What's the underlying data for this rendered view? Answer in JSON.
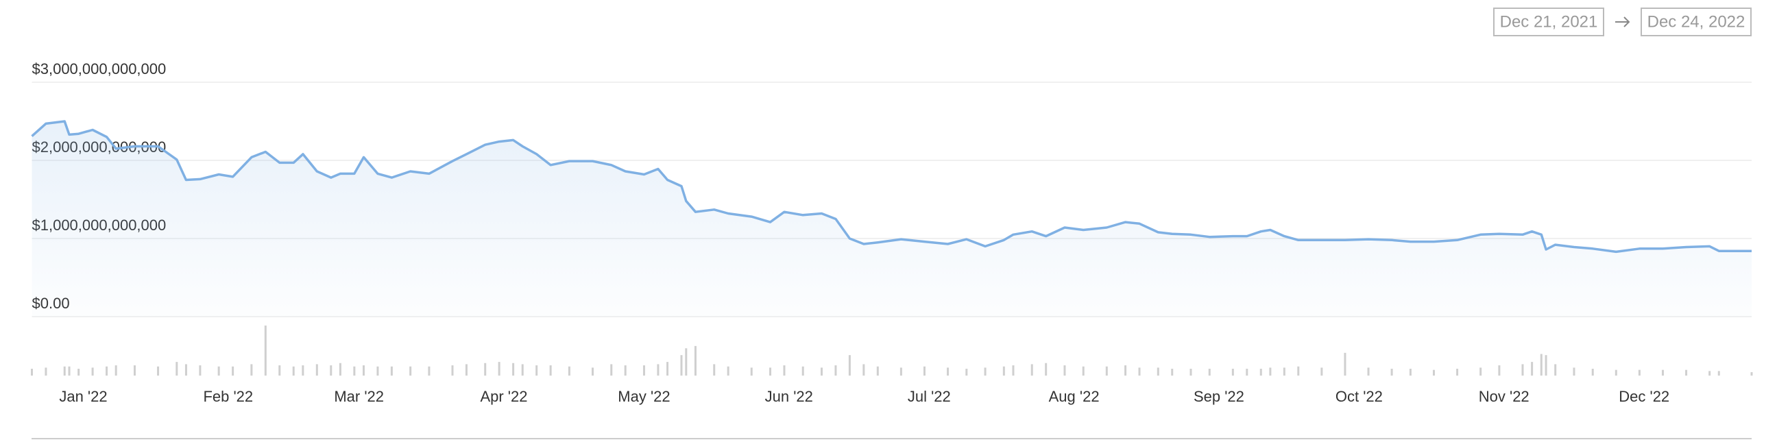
{
  "date_range": {
    "start": "Dec 21, 2021",
    "end": "Dec 24, 2022"
  },
  "chart_data": {
    "type": "line",
    "color": "#7fb0e3",
    "volume_color": "#cfcfcf",
    "grid": true,
    "x": [
      0,
      3,
      7,
      8,
      10,
      13,
      16,
      18,
      22,
      27,
      31,
      33,
      36,
      40,
      43,
      47,
      50,
      53,
      56,
      58,
      61,
      64,
      66,
      69,
      71,
      74,
      77,
      81,
      85,
      90,
      93,
      97,
      100,
      103,
      105,
      108,
      111,
      115,
      120,
      124,
      127,
      131,
      134,
      136,
      139,
      140,
      142,
      146,
      149,
      154,
      158,
      161,
      165,
      169,
      172,
      175,
      178,
      181,
      186,
      191,
      196,
      200,
      204,
      208,
      210,
      214,
      217,
      221,
      225,
      230,
      234,
      237,
      241,
      244,
      248,
      252,
      257,
      260,
      263,
      265,
      268,
      271,
      276,
      281,
      286,
      291,
      295,
      300,
      305,
      310,
      314,
      319,
      321,
      323,
      324,
      326,
      330,
      334,
      339,
      344,
      349,
      354,
      359,
      361,
      368
    ],
    "values": [
      2310000000000,
      2470000000000,
      2500000000000,
      2330000000000,
      2340000000000,
      2390000000000,
      2300000000000,
      2150000000000,
      2180000000000,
      2180000000000,
      2010000000000,
      1750000000000,
      1760000000000,
      1820000000000,
      1790000000000,
      2040000000000,
      2110000000000,
      1970000000000,
      1970000000000,
      2080000000000,
      1860000000000,
      1780000000000,
      1830000000000,
      1830000000000,
      2040000000000,
      1830000000000,
      1780000000000,
      1860000000000,
      1830000000000,
      1990000000000,
      2080000000000,
      2200000000000,
      2240000000000,
      2260000000000,
      2180000000000,
      2080000000000,
      1940000000000,
      1990000000000,
      1990000000000,
      1940000000000,
      1860000000000,
      1820000000000,
      1890000000000,
      1750000000000,
      1670000000000,
      1480000000000,
      1340000000000,
      1370000000000,
      1320000000000,
      1280000000000,
      1210000000000,
      1340000000000,
      1300000000000,
      1320000000000,
      1250000000000,
      1000000000000,
      930000000000,
      950000000000,
      990000000000,
      960000000000,
      930000000000,
      990000000000,
      900000000000,
      980000000000,
      1050000000000,
      1090000000000,
      1030000000000,
      1140000000000,
      1110000000000,
      1140000000000,
      1210000000000,
      1190000000000,
      1080000000000,
      1060000000000,
      1050000000000,
      1020000000000,
      1030000000000,
      1030000000000,
      1090000000000,
      1110000000000,
      1030000000000,
      980000000000,
      980000000000,
      980000000000,
      990000000000,
      980000000000,
      960000000000,
      960000000000,
      980000000000,
      1050000000000,
      1060000000000,
      1050000000000,
      1090000000000,
      1050000000000,
      860000000000,
      920000000000,
      890000000000,
      870000000000,
      830000000000,
      870000000000,
      870000000000,
      890000000000,
      900000000000,
      840000000000,
      840000000000
    ],
    "volume": [
      6,
      7,
      8,
      8,
      6,
      7,
      8,
      9,
      9,
      8,
      12,
      10,
      9,
      8,
      8,
      10,
      44,
      9,
      8,
      9,
      10,
      9,
      11,
      8,
      9,
      8,
      8,
      8,
      8,
      9,
      10,
      11,
      12,
      11,
      10,
      9,
      9,
      8,
      7,
      10,
      9,
      9,
      10,
      12,
      18,
      24,
      26,
      10,
      8,
      7,
      7,
      9,
      8,
      7,
      9,
      18,
      10,
      8,
      7,
      8,
      7,
      6,
      7,
      8,
      9,
      10,
      11,
      9,
      8,
      8,
      9,
      7,
      7,
      6,
      6,
      6,
      6,
      6,
      6,
      7,
      7,
      8,
      7,
      20,
      7,
      6,
      6,
      5,
      6,
      7,
      9,
      10,
      12,
      19,
      18,
      10,
      7,
      6,
      5,
      5,
      5,
      5,
      4,
      4,
      3
    ],
    "xlim": [
      0,
      368
    ],
    "xticks": [
      {
        "value": 11,
        "label": "Jan '22"
      },
      {
        "value": 42,
        "label": "Feb '22"
      },
      {
        "value": 70,
        "label": "Mar '22"
      },
      {
        "value": 101,
        "label": "Apr '22"
      },
      {
        "value": 131,
        "label": "May '22"
      },
      {
        "value": 162,
        "label": "Jun '22"
      },
      {
        "value": 192,
        "label": "Jul '22"
      },
      {
        "value": 223,
        "label": "Aug '22"
      },
      {
        "value": 254,
        "label": "Sep '22"
      },
      {
        "value": 284,
        "label": "Oct '22"
      },
      {
        "value": 315,
        "label": "Nov '22"
      },
      {
        "value": 345,
        "label": "Dec '22"
      }
    ],
    "ylim": [
      0,
      3000000000000
    ],
    "yticks": [
      {
        "value": 0,
        "label": "$0.00"
      },
      {
        "value": 1000000000000,
        "label": "$1,000,000,000,000"
      },
      {
        "value": 2000000000000,
        "label": "$2,000,000,000,000"
      },
      {
        "value": 3000000000000,
        "label": "$3,000,000,000,000"
      }
    ]
  }
}
